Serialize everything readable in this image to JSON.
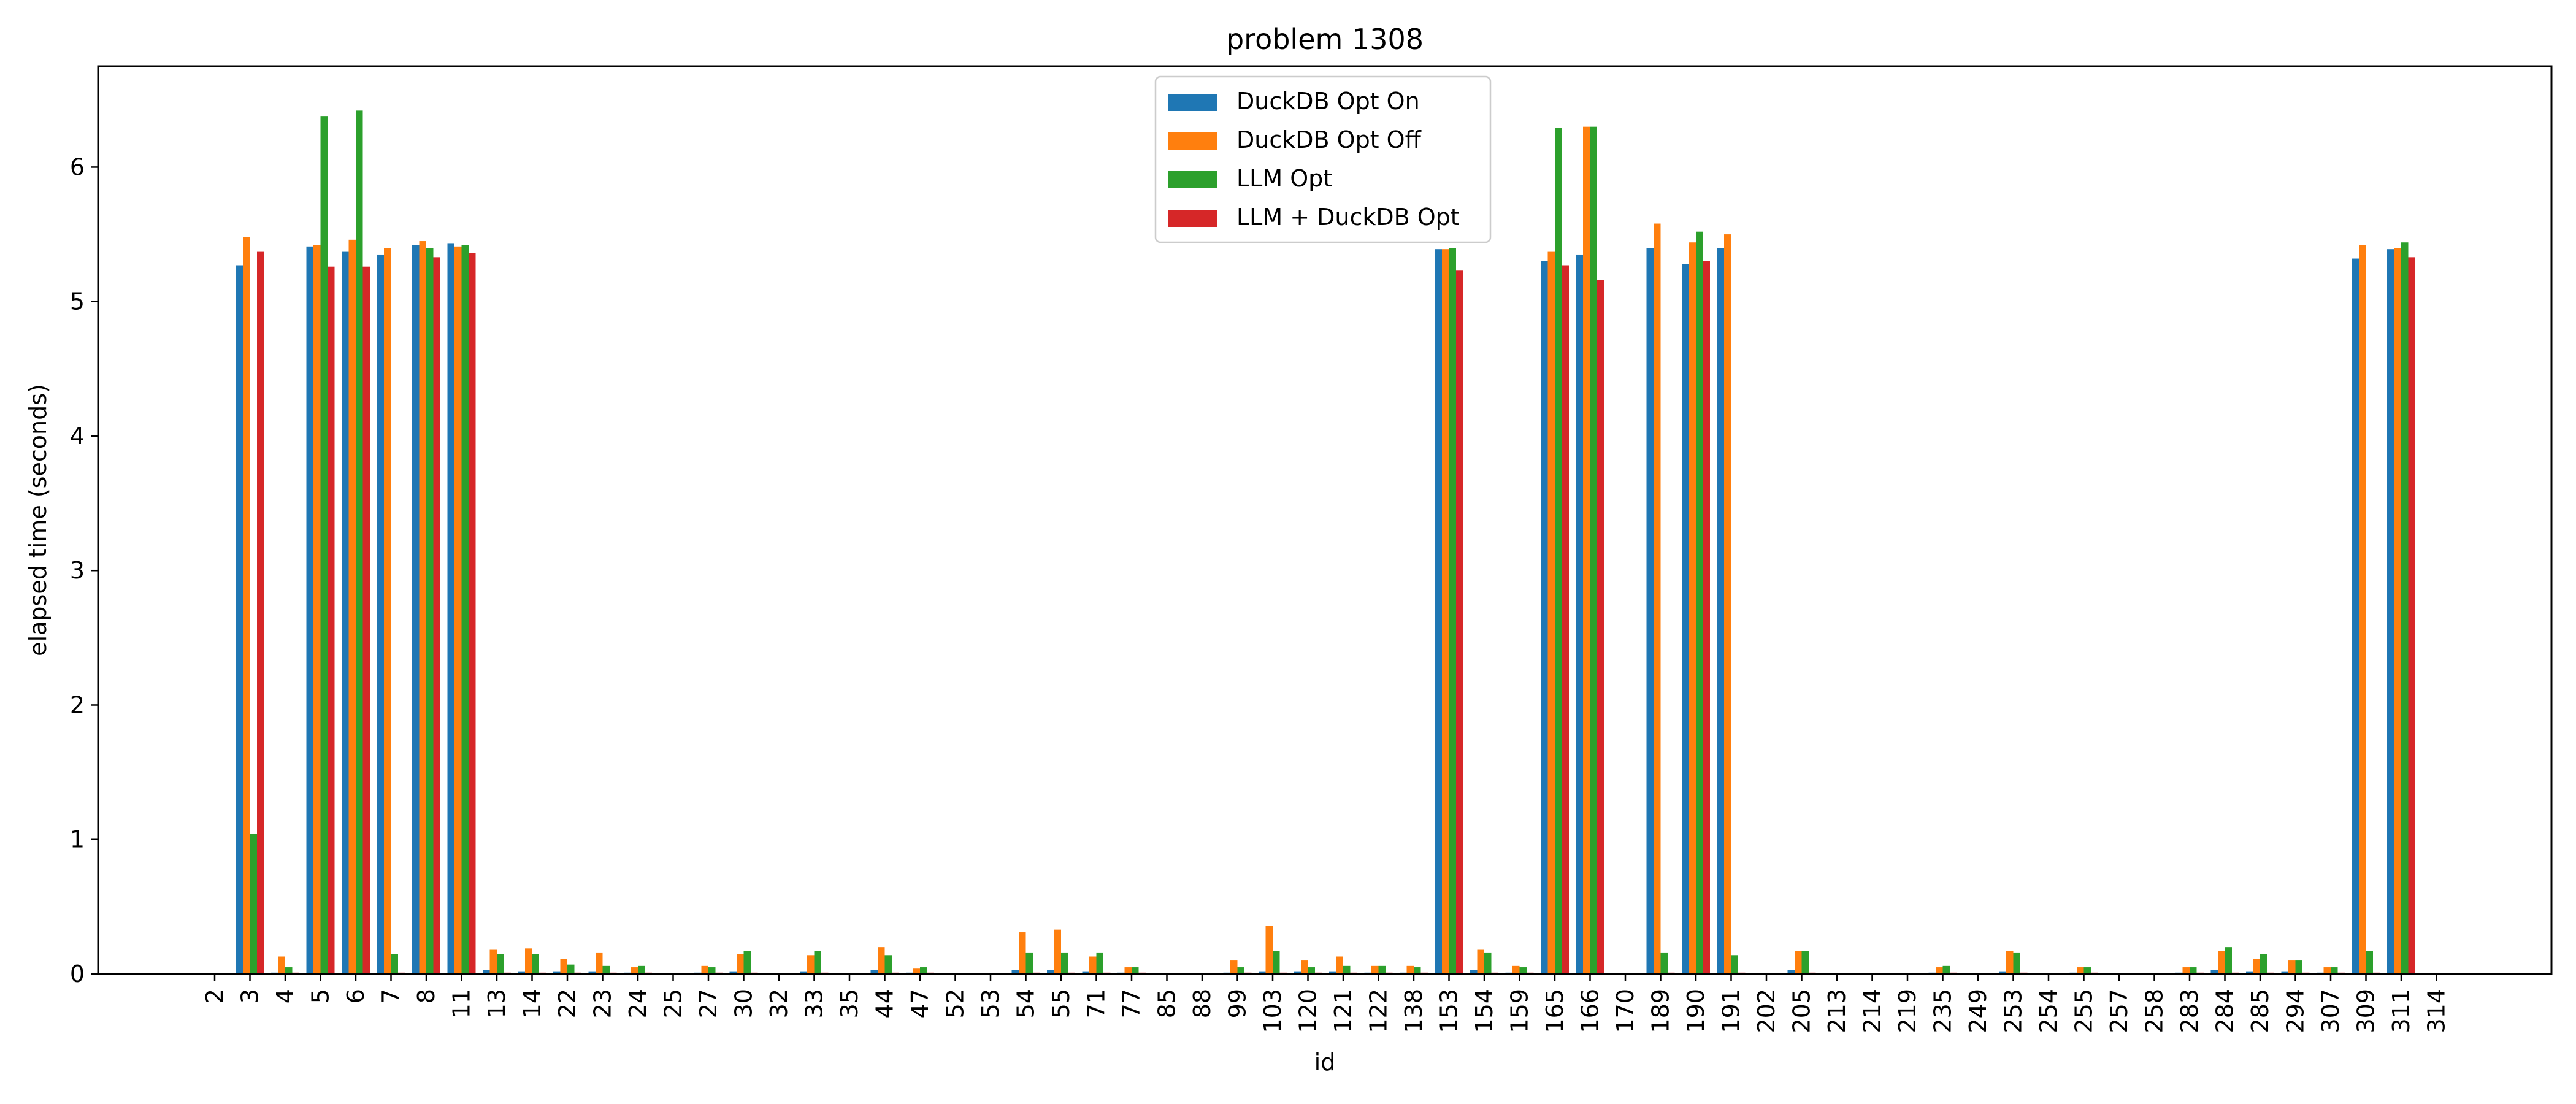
{
  "chart_data": {
    "type": "bar",
    "title": "problem 1308",
    "xlabel": "id",
    "ylabel": "elapsed time (seconds)",
    "ylim": [
      0,
      6.75
    ],
    "yticks": [
      0,
      1,
      2,
      3,
      4,
      5,
      6
    ],
    "legend_position": "top-center",
    "categories": [
      "2",
      "3",
      "4",
      "5",
      "6",
      "7",
      "8",
      "11",
      "13",
      "14",
      "22",
      "23",
      "24",
      "25",
      "27",
      "30",
      "32",
      "33",
      "35",
      "44",
      "47",
      "52",
      "53",
      "54",
      "55",
      "71",
      "77",
      "85",
      "88",
      "99",
      "103",
      "120",
      "121",
      "122",
      "138",
      "153",
      "154",
      "159",
      "165",
      "166",
      "170",
      "189",
      "190",
      "191",
      "202",
      "205",
      "213",
      "214",
      "219",
      "235",
      "249",
      "253",
      "254",
      "255",
      "257",
      "258",
      "283",
      "284",
      "285",
      "294",
      "307",
      "309",
      "311",
      "314"
    ],
    "series": [
      {
        "name": "DuckDB Opt On",
        "color": "#1f77b4",
        "values": [
          0,
          5.27,
          0.01,
          5.41,
          5.37,
          5.35,
          5.42,
          5.43,
          0.03,
          0.02,
          0.02,
          0.02,
          0.01,
          0,
          0.01,
          0.02,
          0,
          0.02,
          0,
          0.03,
          0.01,
          0,
          0,
          0.03,
          0.03,
          0.02,
          0.01,
          0,
          0,
          0.01,
          0.02,
          0.02,
          0.02,
          0.01,
          0.01,
          5.39,
          0.03,
          0.01,
          5.3,
          5.35,
          0,
          5.4,
          5.28,
          5.4,
          0,
          0.03,
          0,
          0,
          0,
          0.01,
          0,
          0.02,
          0,
          0.01,
          0,
          0,
          0.01,
          0.03,
          0.02,
          0.02,
          0.01,
          5.32,
          5.39,
          0
        ]
      },
      {
        "name": "DuckDB Opt Off",
        "color": "#ff7f0e",
        "values": [
          0,
          5.48,
          0.13,
          5.42,
          5.46,
          5.4,
          5.45,
          5.41,
          0.18,
          0.19,
          0.11,
          0.16,
          0.05,
          0,
          0.06,
          0.15,
          0,
          0.14,
          0,
          0.2,
          0.04,
          0,
          0,
          0.31,
          0.33,
          0.13,
          0.05,
          0,
          0,
          0.1,
          0.36,
          0.1,
          0.13,
          0.06,
          0.06,
          5.39,
          0.18,
          0.06,
          5.37,
          6.3,
          0,
          5.58,
          5.44,
          5.5,
          0,
          0.17,
          0,
          0,
          0,
          0.05,
          0,
          0.17,
          0,
          0.05,
          0,
          0,
          0.05,
          0.17,
          0.11,
          0.1,
          0.05,
          5.42,
          5.4,
          0
        ]
      },
      {
        "name": "LLM Opt",
        "color": "#2ca02c",
        "values": [
          0,
          1.04,
          0.05,
          6.38,
          6.42,
          0.15,
          5.4,
          5.42,
          0.15,
          0.15,
          0.07,
          0.06,
          0.06,
          0,
          0.05,
          0.17,
          0,
          0.17,
          0,
          0.14,
          0.05,
          0,
          0,
          0.16,
          0.16,
          0.16,
          0.05,
          0,
          0,
          0.05,
          0.17,
          0.05,
          0.06,
          0.06,
          0.05,
          5.4,
          0.16,
          0.05,
          6.29,
          6.3,
          0,
          0.16,
          5.52,
          0.14,
          0,
          0.17,
          0,
          0,
          0,
          0.06,
          0,
          0.16,
          0,
          0.05,
          0,
          0,
          0.05,
          0.2,
          0.15,
          0.1,
          0.05,
          0.17,
          5.44,
          0
        ]
      },
      {
        "name": "LLM + DuckDB Opt",
        "color": "#d62728",
        "values": [
          0,
          5.37,
          0.01,
          5.26,
          5.26,
          0.01,
          5.33,
          5.36,
          0.01,
          0.01,
          0.01,
          0.01,
          0.01,
          0,
          0.01,
          0.01,
          0,
          0.01,
          0,
          0.01,
          0.01,
          0,
          0,
          0.01,
          0.01,
          0.01,
          0.01,
          0,
          0,
          0.01,
          0.01,
          0.01,
          0.01,
          0.01,
          0.01,
          5.23,
          0.01,
          0.01,
          5.27,
          5.16,
          0,
          0.01,
          5.3,
          0.01,
          0,
          0.01,
          0,
          0,
          0,
          0.01,
          0,
          0.01,
          0,
          0.01,
          0,
          0,
          0.01,
          0.01,
          0.01,
          0.01,
          0.01,
          0.01,
          5.33,
          0
        ]
      }
    ]
  }
}
